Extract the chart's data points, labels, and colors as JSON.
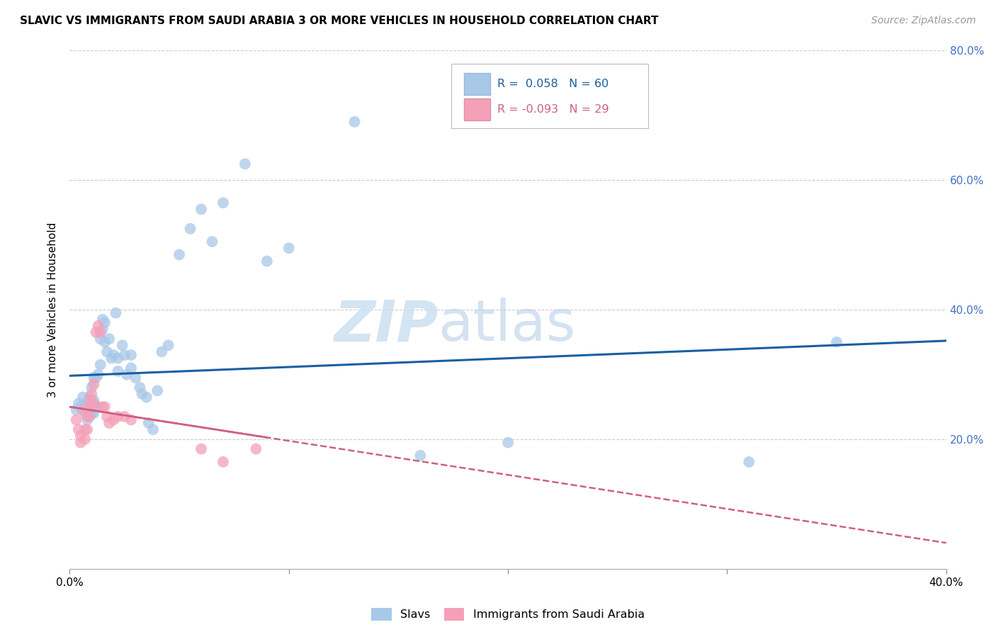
{
  "title": "SLAVIC VS IMMIGRANTS FROM SAUDI ARABIA 3 OR MORE VEHICLES IN HOUSEHOLD CORRELATION CHART",
  "source": "Source: ZipAtlas.com",
  "ylabel": "3 or more Vehicles in Household",
  "xlim": [
    0.0,
    0.4
  ],
  "ylim": [
    0.0,
    0.8
  ],
  "slavs_color": "#a8c8e8",
  "saudi_color": "#f4a0b8",
  "slavs_line_color": "#1a5fa0",
  "saudi_line_color": "#d06080",
  "legend_slavs_r": "0.058",
  "legend_slavs_n": "60",
  "legend_saudi_r": "-0.093",
  "legend_saudi_n": "29",
  "slavs_scatter_x": [
    0.003,
    0.004,
    0.005,
    0.006,
    0.007,
    0.007,
    0.008,
    0.008,
    0.009,
    0.009,
    0.01,
    0.01,
    0.01,
    0.011,
    0.011,
    0.011,
    0.012,
    0.012,
    0.013,
    0.013,
    0.014,
    0.014,
    0.015,
    0.015,
    0.016,
    0.016,
    0.017,
    0.018,
    0.019,
    0.02,
    0.021,
    0.022,
    0.022,
    0.024,
    0.025,
    0.026,
    0.028,
    0.028,
    0.03,
    0.032,
    0.033,
    0.035,
    0.036,
    0.038,
    0.04,
    0.042,
    0.045,
    0.05,
    0.055,
    0.06,
    0.065,
    0.07,
    0.08,
    0.09,
    0.1,
    0.13,
    0.16,
    0.2,
    0.31,
    0.35
  ],
  "slavs_scatter_y": [
    0.245,
    0.255,
    0.25,
    0.265,
    0.24,
    0.255,
    0.23,
    0.25,
    0.24,
    0.265,
    0.24,
    0.26,
    0.28,
    0.295,
    0.24,
    0.26,
    0.25,
    0.295,
    0.25,
    0.3,
    0.315,
    0.355,
    0.37,
    0.385,
    0.35,
    0.38,
    0.335,
    0.355,
    0.325,
    0.33,
    0.395,
    0.305,
    0.325,
    0.345,
    0.33,
    0.3,
    0.31,
    0.33,
    0.295,
    0.28,
    0.27,
    0.265,
    0.225,
    0.215,
    0.275,
    0.335,
    0.345,
    0.485,
    0.525,
    0.555,
    0.505,
    0.565,
    0.625,
    0.475,
    0.495,
    0.69,
    0.175,
    0.195,
    0.165,
    0.35
  ],
  "saudi_scatter_x": [
    0.003,
    0.004,
    0.005,
    0.005,
    0.006,
    0.007,
    0.007,
    0.008,
    0.008,
    0.009,
    0.009,
    0.01,
    0.01,
    0.011,
    0.011,
    0.012,
    0.013,
    0.014,
    0.015,
    0.016,
    0.017,
    0.018,
    0.02,
    0.022,
    0.025,
    0.028,
    0.06,
    0.07,
    0.085
  ],
  "saudi_scatter_y": [
    0.23,
    0.215,
    0.195,
    0.205,
    0.245,
    0.2,
    0.215,
    0.215,
    0.235,
    0.235,
    0.26,
    0.25,
    0.27,
    0.255,
    0.285,
    0.365,
    0.375,
    0.365,
    0.25,
    0.25,
    0.235,
    0.225,
    0.23,
    0.235,
    0.235,
    0.23,
    0.185,
    0.165,
    0.185
  ],
  "slavs_trend_x": [
    0.0,
    0.4
  ],
  "slavs_trend_y": [
    0.298,
    0.352
  ],
  "saudi_trend_x": [
    0.0,
    0.4
  ],
  "saudi_trend_y": [
    0.25,
    0.04
  ]
}
